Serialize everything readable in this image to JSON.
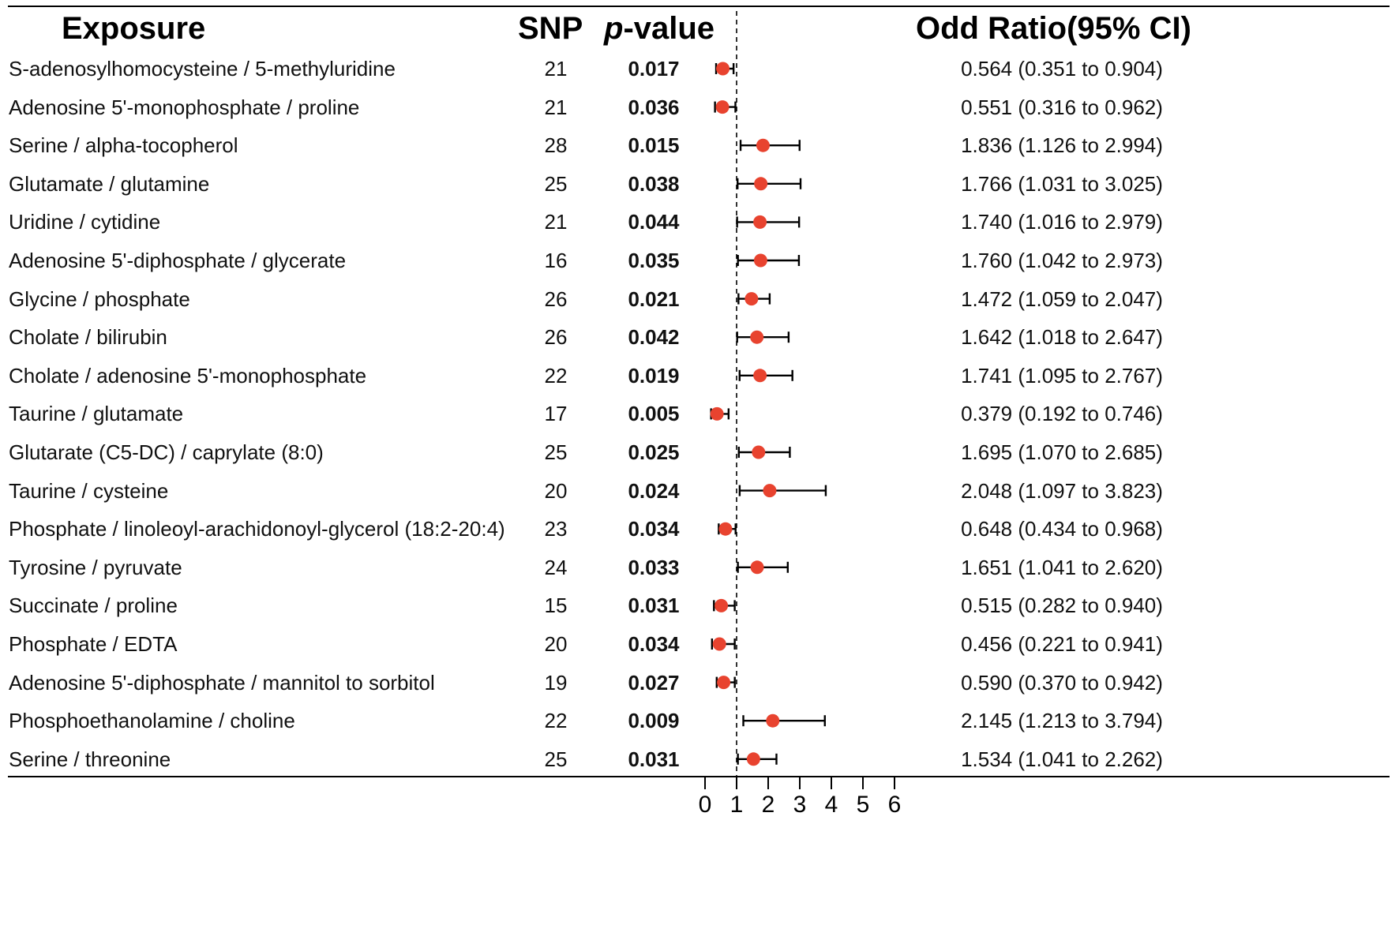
{
  "chart_data": {
    "type": "forest",
    "title": "",
    "columns": {
      "exposure": "Exposure",
      "snp": "SNP",
      "pvalue_italic": "p",
      "pvalue_rest": "-value",
      "or": "Odd Ratio(95% CI)"
    },
    "xlabel": "",
    "xlim": [
      0,
      6
    ],
    "xticks": [
      "0",
      "1",
      "2",
      "3",
      "4",
      "5",
      "6"
    ],
    "reference_line": 1,
    "marker_color": "#e8432f",
    "rows": [
      {
        "exposure": "S-adenosylhomocysteine / 5-methyluridine",
        "snp": "21",
        "p": "0.017",
        "or_text": "0.564 (0.351 to 0.904)",
        "or": 0.564,
        "lo": 0.351,
        "hi": 0.904
      },
      {
        "exposure": "Adenosine 5'-monophosphate / proline",
        "snp": "21",
        "p": "0.036",
        "or_text": "0.551 (0.316 to 0.962)",
        "or": 0.551,
        "lo": 0.316,
        "hi": 0.962
      },
      {
        "exposure": "Serine / alpha-tocopherol",
        "snp": "28",
        "p": "0.015",
        "or_text": "1.836 (1.126 to 2.994)",
        "or": 1.836,
        "lo": 1.126,
        "hi": 2.994
      },
      {
        "exposure": "Glutamate / glutamine",
        "snp": "25",
        "p": "0.038",
        "or_text": "1.766 (1.031 to 3.025)",
        "or": 1.766,
        "lo": 1.031,
        "hi": 3.025
      },
      {
        "exposure": "Uridine / cytidine",
        "snp": "21",
        "p": "0.044",
        "or_text": "1.740 (1.016 to 2.979)",
        "or": 1.74,
        "lo": 1.016,
        "hi": 2.979
      },
      {
        "exposure": "Adenosine 5'-diphosphate / glycerate",
        "snp": "16",
        "p": "0.035",
        "or_text": "1.760 (1.042 to 2.973)",
        "or": 1.76,
        "lo": 1.042,
        "hi": 2.973
      },
      {
        "exposure": "Glycine / phosphate",
        "snp": "26",
        "p": "0.021",
        "or_text": "1.472 (1.059 to 2.047)",
        "or": 1.472,
        "lo": 1.059,
        "hi": 2.047
      },
      {
        "exposure": "Cholate / bilirubin",
        "snp": "26",
        "p": "0.042",
        "or_text": "1.642 (1.018 to 2.647)",
        "or": 1.642,
        "lo": 1.018,
        "hi": 2.647
      },
      {
        "exposure": "Cholate / adenosine 5'-monophosphate",
        "snp": "22",
        "p": "0.019",
        "or_text": "1.741 (1.095 to 2.767)",
        "or": 1.741,
        "lo": 1.095,
        "hi": 2.767
      },
      {
        "exposure": "Taurine / glutamate",
        "snp": "17",
        "p": "0.005",
        "or_text": "0.379 (0.192 to 0.746)",
        "or": 0.379,
        "lo": 0.192,
        "hi": 0.746
      },
      {
        "exposure": "Glutarate (C5-DC) / caprylate (8:0)",
        "snp": "25",
        "p": "0.025",
        "or_text": "1.695 (1.070 to 2.685)",
        "or": 1.695,
        "lo": 1.07,
        "hi": 2.685
      },
      {
        "exposure": "Taurine / cysteine",
        "snp": "20",
        "p": "0.024",
        "or_text": "2.048 (1.097 to 3.823)",
        "or": 2.048,
        "lo": 1.097,
        "hi": 3.823
      },
      {
        "exposure": "Phosphate / linoleoyl-arachidonoyl-glycerol (18:2-20:4)",
        "snp": "23",
        "p": "0.034",
        "or_text": "0.648 (0.434 to 0.968)",
        "or": 0.648,
        "lo": 0.434,
        "hi": 0.968
      },
      {
        "exposure": "Tyrosine / pyruvate",
        "snp": "24",
        "p": "0.033",
        "or_text": "1.651 (1.041 to 2.620)",
        "or": 1.651,
        "lo": 1.041,
        "hi": 2.62
      },
      {
        "exposure": "Succinate / proline",
        "snp": "15",
        "p": "0.031",
        "or_text": "0.515 (0.282 to 0.940)",
        "or": 0.515,
        "lo": 0.282,
        "hi": 0.94
      },
      {
        "exposure": "Phosphate / EDTA",
        "snp": "20",
        "p": "0.034",
        "or_text": "0.456 (0.221 to 0.941)",
        "or": 0.456,
        "lo": 0.221,
        "hi": 0.941
      },
      {
        "exposure": "Adenosine 5'-diphosphate / mannitol to sorbitol",
        "snp": "19",
        "p": "0.027",
        "or_text": "0.590 (0.370 to 0.942)",
        "or": 0.59,
        "lo": 0.37,
        "hi": 0.942
      },
      {
        "exposure": "Phosphoethanolamine / choline",
        "snp": "22",
        "p": "0.009",
        "or_text": "2.145 (1.213 to 3.794)",
        "or": 2.145,
        "lo": 1.213,
        "hi": 3.794
      },
      {
        "exposure": "Serine / threonine",
        "snp": "25",
        "p": "0.031",
        "or_text": "1.534 (1.041 to 2.262)",
        "or": 1.534,
        "lo": 1.041,
        "hi": 2.262
      }
    ]
  }
}
